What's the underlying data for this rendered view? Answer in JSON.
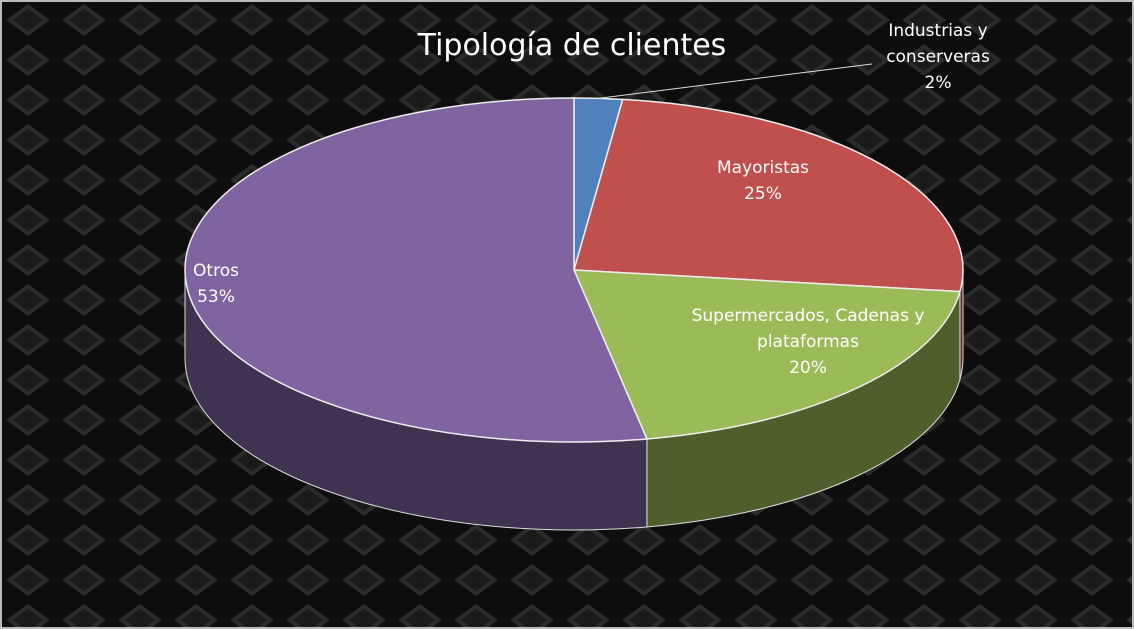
{
  "chart_data": {
    "type": "pie3d",
    "title": "Tipología de clientes",
    "categories": [
      "Industrias y conserveras",
      "Mayoristas",
      "Supermercados, Cadenas y plataformas",
      "Otros"
    ],
    "values": [
      2,
      25,
      20,
      53
    ],
    "value_labels": [
      "2%",
      "25%",
      "20%",
      "53%"
    ],
    "colors": [
      "#4f81bd",
      "#c0504d",
      "#9bbb59",
      "#8064a2"
    ]
  }
}
